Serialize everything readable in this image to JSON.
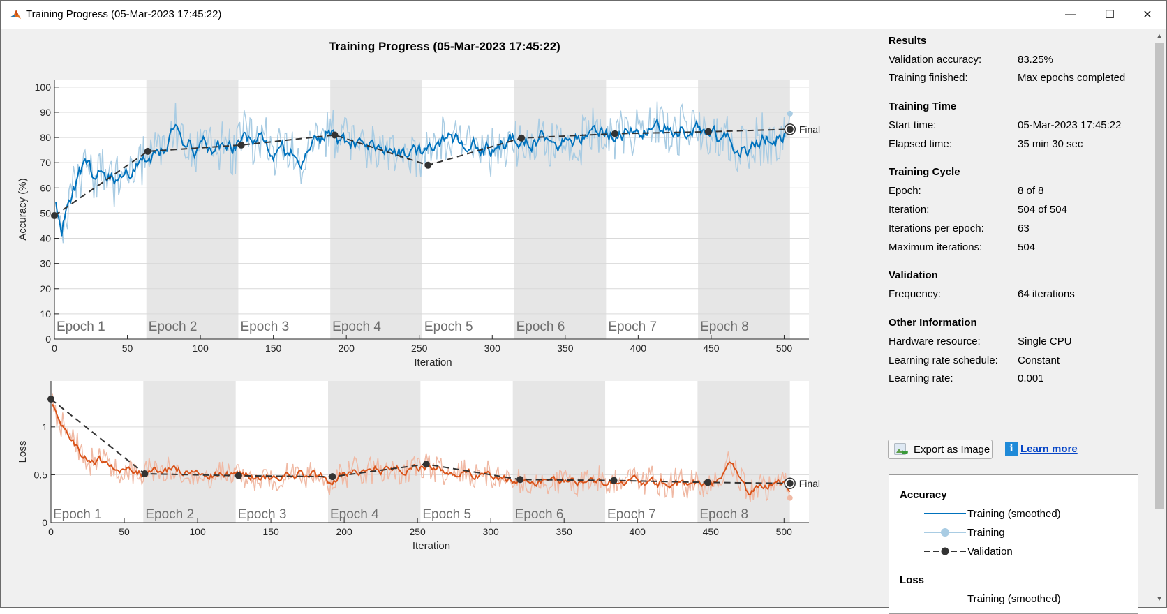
{
  "window": {
    "title": "Training Progress (05-Mar-2023 17:45:22)",
    "minimize_label": "—",
    "maximize_label": "☐",
    "close_label": "✕"
  },
  "plot_title": "Training Progress (05-Mar-2023 17:45:22)",
  "colors": {
    "accuracy_smoothed": "#0072bd",
    "accuracy_raw": "#a9cce3",
    "loss_smoothed": "#d95319",
    "loss_raw": "#f0b9a4",
    "validation": "#333333",
    "epoch_shade": "#e6e6e6"
  },
  "chart_data": [
    {
      "type": "line",
      "name": "accuracy",
      "xlabel": "Iteration",
      "ylabel": "Accuracy (%)",
      "xlim": [
        0,
        517
      ],
      "ylim": [
        0,
        103
      ],
      "xticks": [
        0,
        50,
        100,
        150,
        200,
        250,
        300,
        350,
        400,
        450,
        500
      ],
      "yticks": [
        0,
        10,
        20,
        30,
        40,
        50,
        60,
        70,
        80,
        90,
        100
      ],
      "epoch_labels": [
        "Epoch 1",
        "Epoch 2",
        "Epoch 3",
        "Epoch 4",
        "Epoch 5",
        "Epoch 6",
        "Epoch 7",
        "Epoch 8"
      ],
      "epoch_boundaries": [
        0,
        63,
        126,
        189,
        252,
        315,
        378,
        441,
        504
      ],
      "final_label": "Final",
      "smoothed_profile": {
        "x": [
          0,
          5,
          10,
          20,
          40,
          63,
          80,
          100,
          126,
          140,
          150,
          170,
          189,
          200,
          220,
          252,
          270,
          300,
          315,
          340,
          370,
          400,
          430,
          455,
          475,
          490,
          504
        ],
        "y": [
          60,
          45,
          58,
          66,
          64,
          70,
          80,
          76,
          76,
          82,
          76,
          72,
          82,
          78,
          76,
          74,
          78,
          76,
          80,
          80,
          80,
          82,
          84,
          80,
          76,
          80,
          83
        ]
      },
      "validation": {
        "x": [
          0,
          64,
          128,
          192,
          256,
          320,
          384,
          448,
          504
        ],
        "y": [
          49,
          74.5,
          77,
          81,
          69,
          79.8,
          81.5,
          82.3,
          83.25
        ]
      }
    },
    {
      "type": "line",
      "name": "loss",
      "xlabel": "Iteration",
      "ylabel": "Loss",
      "xlim": [
        0,
        517
      ],
      "ylim": [
        0,
        1.48
      ],
      "xticks": [
        0,
        50,
        100,
        150,
        200,
        250,
        300,
        350,
        400,
        450,
        500
      ],
      "yticks": [
        0,
        0.5,
        1
      ],
      "epoch_labels": [
        "Epoch 1",
        "Epoch 2",
        "Epoch 3",
        "Epoch 4",
        "Epoch 5",
        "Epoch 6",
        "Epoch 7",
        "Epoch 8"
      ],
      "epoch_boundaries": [
        0,
        63,
        126,
        189,
        252,
        315,
        378,
        441,
        504
      ],
      "final_label": "Final",
      "smoothed_profile": {
        "x": [
          0,
          5,
          10,
          20,
          40,
          63,
          80,
          100,
          126,
          150,
          170,
          189,
          200,
          220,
          252,
          280,
          315,
          340,
          370,
          400,
          430,
          455,
          465,
          475,
          490,
          504
        ],
        "y": [
          1.3,
          1.15,
          0.95,
          0.72,
          0.62,
          0.52,
          0.55,
          0.52,
          0.5,
          0.48,
          0.52,
          0.45,
          0.5,
          0.55,
          0.58,
          0.52,
          0.46,
          0.45,
          0.42,
          0.44,
          0.4,
          0.42,
          0.62,
          0.3,
          0.42,
          0.38
        ]
      },
      "validation": {
        "x": [
          0,
          64,
          128,
          192,
          256,
          320,
          384,
          448,
          504
        ],
        "y": [
          1.29,
          0.51,
          0.49,
          0.48,
          0.61,
          0.45,
          0.44,
          0.42,
          0.41
        ]
      }
    }
  ],
  "results": {
    "title": "Results",
    "rows": [
      {
        "label": "Validation accuracy:",
        "value": "83.25%"
      },
      {
        "label": "Training finished:",
        "value": "Max epochs completed"
      }
    ]
  },
  "training_time": {
    "title": "Training Time",
    "rows": [
      {
        "label": "Start time:",
        "value": "05-Mar-2023 17:45:22"
      },
      {
        "label": "Elapsed time:",
        "value": "35 min 30 sec"
      }
    ]
  },
  "training_cycle": {
    "title": "Training Cycle",
    "rows": [
      {
        "label": "Epoch:",
        "value": "8 of 8"
      },
      {
        "label": "Iteration:",
        "value": "504 of 504"
      },
      {
        "label": "Iterations per epoch:",
        "value": "63"
      },
      {
        "label": "Maximum iterations:",
        "value": "504"
      }
    ]
  },
  "validation_info": {
    "title": "Validation",
    "rows": [
      {
        "label": "Frequency:",
        "value": "64 iterations"
      }
    ]
  },
  "other_info": {
    "title": "Other Information",
    "rows": [
      {
        "label": "Hardware resource:",
        "value": "Single CPU"
      },
      {
        "label": "Learning rate schedule:",
        "value": "Constant"
      },
      {
        "label": "Learning rate:",
        "value": "0.001"
      }
    ]
  },
  "buttons": {
    "export": "Export as Image",
    "learn_more": "Learn more"
  },
  "legend": {
    "accuracy_title": "Accuracy",
    "loss_title": "Loss",
    "training_smoothed": "Training (smoothed)",
    "training": "Training",
    "validation": "Validation"
  }
}
